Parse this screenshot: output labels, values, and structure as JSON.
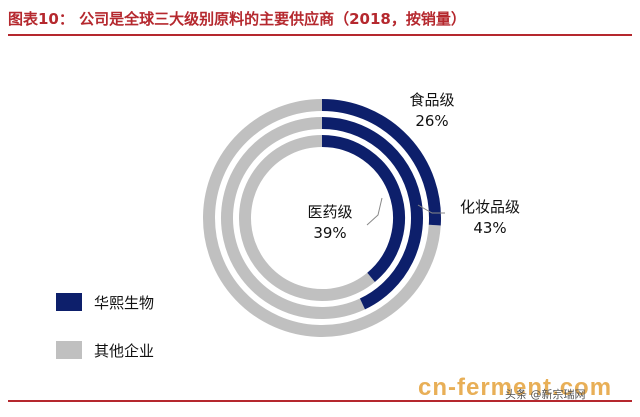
{
  "title": "图表10：  公司是全球三大级别原料的主要供应商（2018，按销量）",
  "watermark": "cn-ferment.com",
  "source_overlay": "头条 @新宗瑞网",
  "colors": {
    "primary": "#0d1f6b",
    "other": "#c0c0c0",
    "title": "#b5282e"
  },
  "legend": [
    {
      "label": "华熙生物",
      "color": "#0d1f6b"
    },
    {
      "label": "其他企业",
      "color": "#c0c0c0"
    }
  ],
  "chart_data": {
    "type": "donut",
    "series": [
      {
        "name": "食品级",
        "label": "食品级",
        "value_label": "26%",
        "share": 0.26
      },
      {
        "name": "化妆品级",
        "label": "化妆品级",
        "value_label": "43%",
        "share": 0.43
      },
      {
        "name": "医药级",
        "label": "医药级",
        "value_label": "39%",
        "share": 0.39
      }
    ],
    "categories": [
      "华熙生物",
      "其他企业"
    ]
  }
}
